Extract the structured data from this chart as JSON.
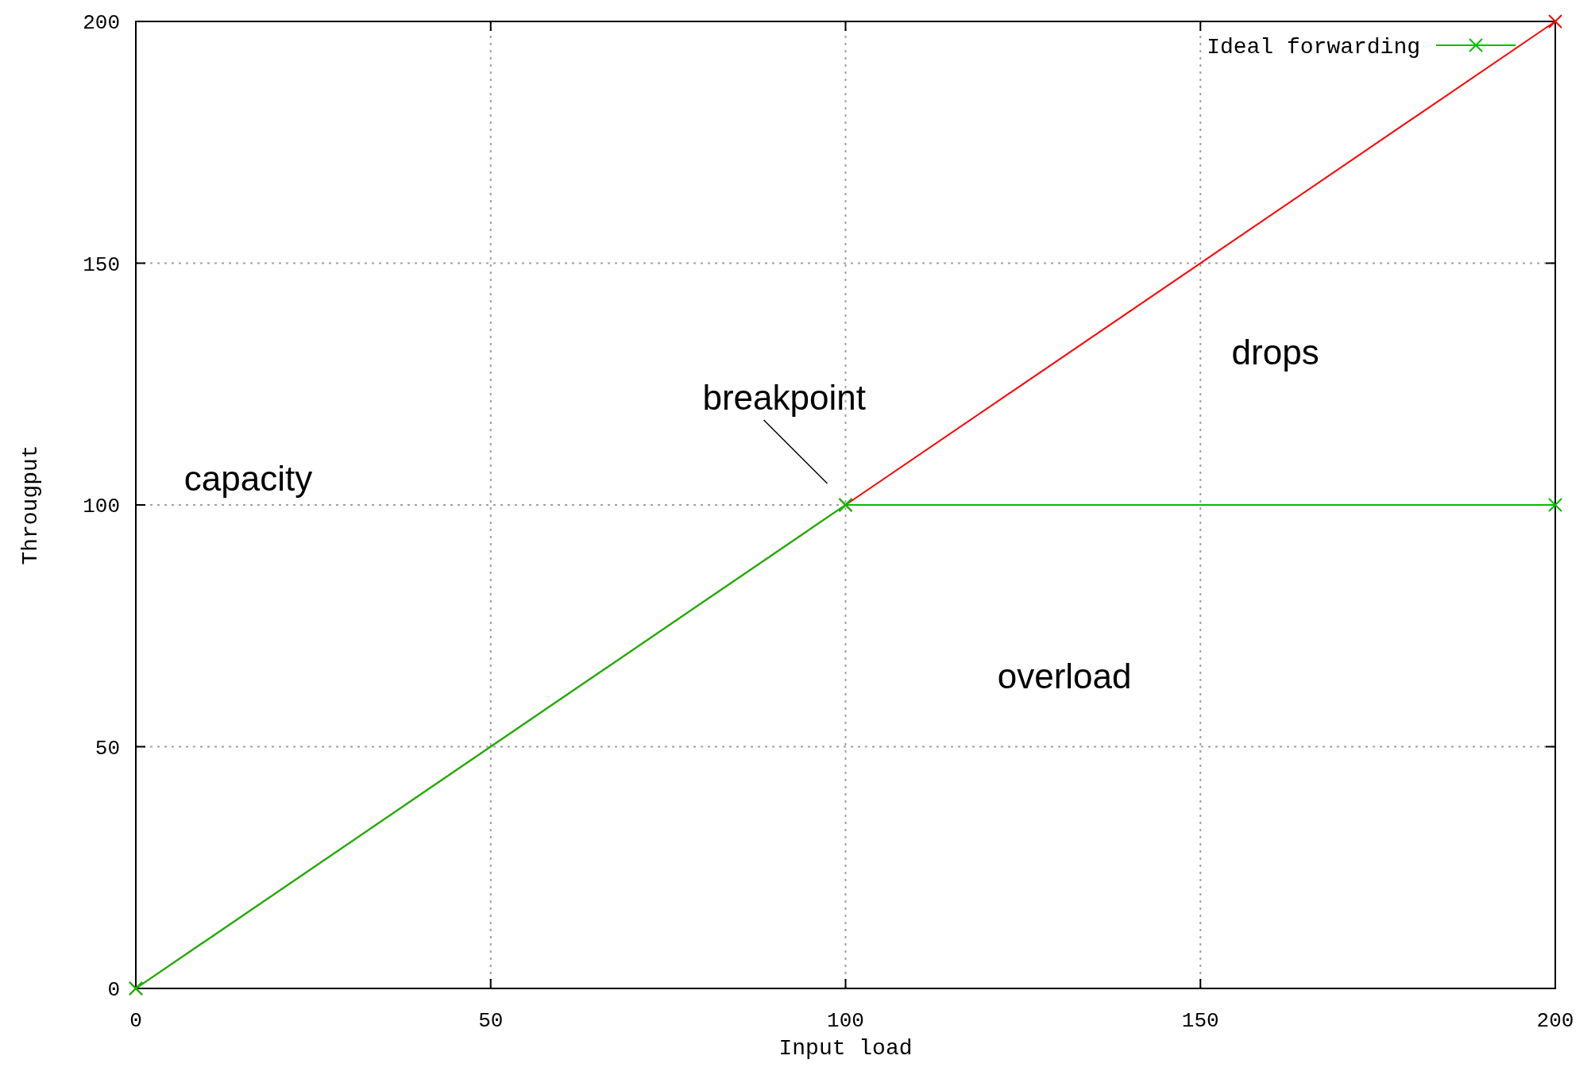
{
  "chart_data": {
    "type": "line",
    "xlabel": "Input load",
    "ylabel": "Througput",
    "xlim": [
      0,
      200
    ],
    "ylim": [
      0,
      200
    ],
    "xticks": [
      0,
      50,
      100,
      150,
      200
    ],
    "yticks": [
      0,
      50,
      100,
      150,
      200
    ],
    "grid": true,
    "legend": "top right",
    "marker": "cross",
    "series": [
      {
        "color": "#ff0000",
        "x": [
          0,
          100,
          200
        ],
        "values": [
          0,
          100,
          200
        ]
      },
      {
        "name": "Ideal forwarding",
        "color": "#00c000",
        "x": [
          0,
          100,
          200
        ],
        "values": [
          0,
          100,
          100
        ]
      }
    ],
    "annotations": [
      "capacity",
      {
        "text": "breakpoint",
        "x": 100,
        "y": 100
      },
      "drops",
      "overload"
    ]
  }
}
